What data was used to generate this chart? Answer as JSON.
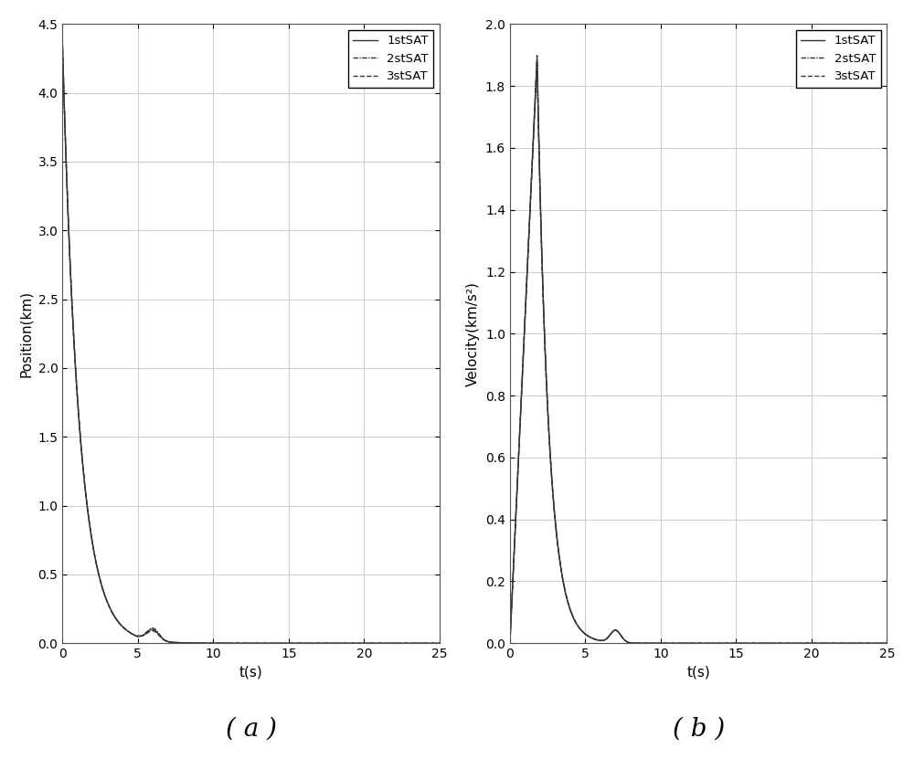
{
  "fig_width": 10.0,
  "fig_height": 8.31,
  "subplot_a": {
    "xlabel": "t(s)",
    "ylabel": "Position(km)",
    "xlim": [
      0,
      25
    ],
    "ylim": [
      0,
      4.5
    ],
    "xticks": [
      0,
      5,
      10,
      15,
      20,
      25
    ],
    "yticks": [
      0,
      0.5,
      1.0,
      1.5,
      2.0,
      2.5,
      3.0,
      3.5,
      4.0,
      4.5
    ],
    "label_a": "( a )",
    "legend": [
      "1stSAT",
      "2stSAT",
      "3stSAT"
    ]
  },
  "subplot_b": {
    "xlabel": "t(s)",
    "ylabel": "Velocity(km/s²)",
    "xlim": [
      0,
      25
    ],
    "ylim": [
      0,
      2.0
    ],
    "xticks": [
      0,
      5,
      10,
      15,
      20,
      25
    ],
    "yticks": [
      0,
      0.2,
      0.4,
      0.6,
      0.8,
      1.0,
      1.2,
      1.4,
      1.6,
      1.8,
      2.0
    ],
    "label_b": "( b )",
    "legend": [
      "1stSAT",
      "2stSAT",
      "3stSAT"
    ]
  },
  "line_color": "#333333",
  "bg_color": "#ffffff",
  "grid_color": "#d0d0d0",
  "pos_start": 4.37,
  "vel_peak": 1.89
}
